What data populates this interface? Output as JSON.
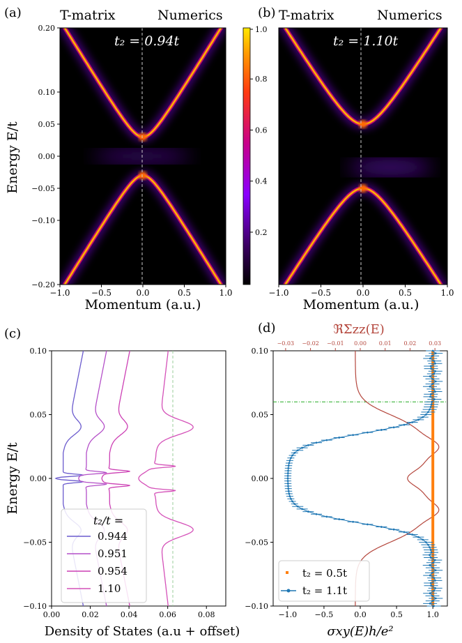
{
  "colors": {
    "map_low": "#000000",
    "map_mid": "#8a00ff",
    "map_high": "#ffd200",
    "dos1": "#6a5acd",
    "dos2": "#b44fc8",
    "dos3": "#cc3fb4",
    "dos4": "#d450b8",
    "sigma_blue": "#1f77b4",
    "sigma_orange": "#ff7f0e",
    "sigma_red": "#b4463c",
    "guide_green": "#22aa22"
  },
  "panel_a": {
    "tag": "(a)",
    "left_label": "T-matrix",
    "right_label": "Numerics",
    "param": "t₂ = 0.94t",
    "ylabel": "Energy E/t",
    "xlabel": "Momentum (a.u.)"
  },
  "panel_b": {
    "tag": "(b)",
    "left_label": "T-matrix",
    "right_label": "Numerics",
    "param": "t₂ = 1.10t",
    "xlabel": "Momentum (a.u.)"
  },
  "colorbar": {
    "ticks": [
      "1.0",
      "0.8",
      "0.6",
      "0.4",
      "0.2"
    ]
  },
  "panel_c": {
    "tag": "(c)",
    "ylabel": "Energy  E/t",
    "xlabel": "Density of States (a.u + offset)",
    "legend_title": "t₂/t ="
  },
  "panel_d": {
    "tag": "(d)",
    "top_title": "ℜΣzz(E)",
    "xlabel": "σxy(E)h/e²"
  },
  "chart_data": [
    {
      "type": "heatmap",
      "panel": "a",
      "xlim": [
        -1,
        1
      ],
      "ylim": [
        -0.2,
        0.2
      ],
      "xticks": [
        "−1.0",
        "−0.5",
        "0.0",
        "0.5",
        "1.0"
      ],
      "yticks": [
        "0.20",
        "0.10",
        "0.05",
        "0.00",
        "−0.05",
        "−0.10",
        "−0.20"
      ],
      "ytick_values": [
        0.2,
        0.1,
        0.05,
        0.0,
        -0.05,
        -0.1,
        -0.2
      ],
      "gap": 0.03
    },
    {
      "type": "heatmap",
      "panel": "b",
      "xlim": [
        -1,
        1
      ],
      "ylim": [
        -0.2,
        0.2
      ],
      "xticks": [
        "−1.0",
        "−0.5",
        "0.0",
        "0.5",
        "1.0"
      ],
      "gap": 0.05
    },
    {
      "type": "line",
      "panel": "c",
      "xlim": [
        0,
        0.09
      ],
      "ylim": [
        -0.1,
        0.1
      ],
      "xticks": [
        "0.00",
        "0.02",
        "0.04",
        "0.06",
        "0.08"
      ],
      "yticks": [
        "0.10",
        "0.05",
        "0.00",
        "−0.05",
        "−0.10"
      ],
      "series": [
        {
          "name": "0.944",
          "offset": 0.0
        },
        {
          "name": "0.951",
          "offset": 0.012
        },
        {
          "name": "0.954",
          "offset": 0.024
        },
        {
          "name": "1.10",
          "offset": 0.048
        }
      ]
    },
    {
      "type": "scatter",
      "panel": "d",
      "xlim": [
        -1.2,
        1.2
      ],
      "ylim": [
        -0.1,
        0.1
      ],
      "xticks": [
        "−1.0",
        "−0.5",
        "0.0",
        "0.5",
        "1.0"
      ],
      "yticks": [
        "0.10",
        "0.05",
        "0.00",
        "−0.05",
        "−0.10"
      ],
      "top_ticks": [
        "−0.03",
        "−0.02",
        "−0.01",
        "0.00",
        "0.01",
        "0.02",
        "0.03"
      ],
      "hline_y": 0.06,
      "series": [
        {
          "name": "t₂ = 0.5t",
          "value": 1.0
        },
        {
          "name": "t₂ = 1.1t",
          "plateau_low": -1.0,
          "plateau_high": 1.0
        }
      ]
    }
  ]
}
